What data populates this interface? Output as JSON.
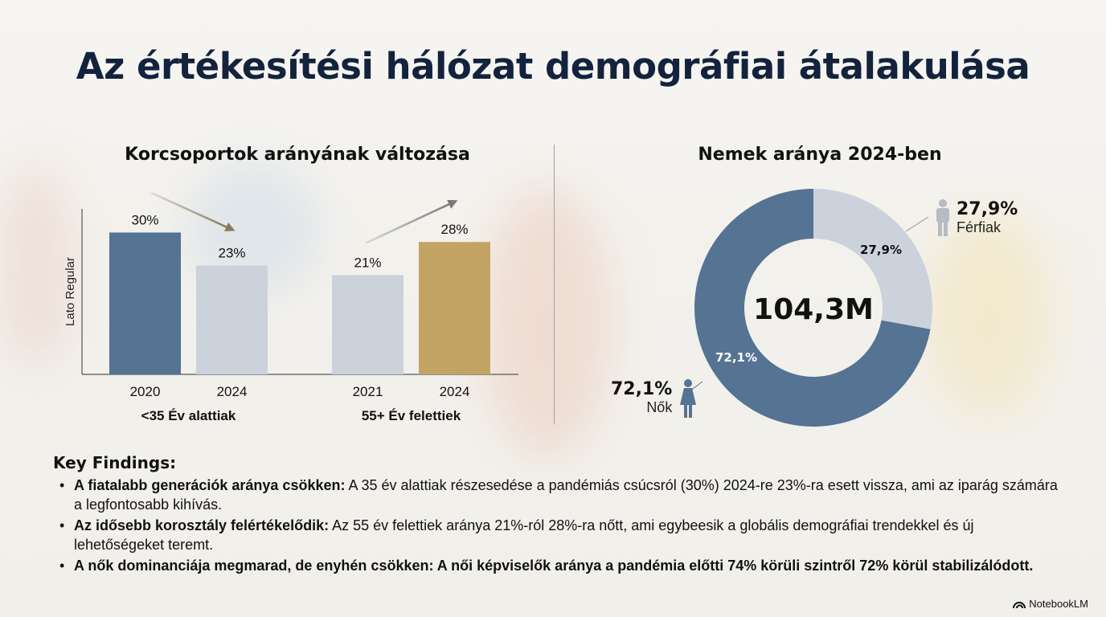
{
  "title": "Az értékesítési hálózat demográfiai átalakulása",
  "colors": {
    "title": "#13233d",
    "steel_blue": "#557392",
    "light_gray": "#cbd2db",
    "gold": "#c4a464",
    "arrow_gray": "#7f7f7f"
  },
  "chart_data": [
    {
      "type": "bar",
      "title": "Korcsoportok arányának változása",
      "ylabel": "Lato Regular",
      "xlabel": "",
      "ylim": [
        0,
        35
      ],
      "grid": false,
      "groups": [
        {
          "label": "<35 Év alattiak",
          "categories": [
            "2020",
            "2024"
          ],
          "values": [
            30,
            23
          ],
          "data_labels": [
            "30%",
            "23%"
          ],
          "trend": "down"
        },
        {
          "label": "55+ Év felettiek",
          "categories": [
            "2021",
            "2024"
          ],
          "values": [
            21,
            28
          ],
          "data_labels": [
            "21%",
            "28%"
          ],
          "trend": "up"
        }
      ]
    },
    {
      "type": "pie",
      "title": "Nemek aránya 2024-ben",
      "center_label": "104,3M",
      "slices": [
        {
          "label": "Férfiak",
          "value": 27.9,
          "display": "27,9%",
          "icon": "male-person-icon"
        },
        {
          "label": "Nők",
          "value": 72.1,
          "display": "72,1%",
          "icon": "female-person-icon"
        }
      ]
    }
  ],
  "findings": {
    "title": "Key Findings:",
    "items": [
      {
        "bold": "A fiatalabb generációk aránya csökken:",
        "text": " A 35 év alattiak részesedése a pandémiás csúcsról (30%) 2024-re 23%-ra esett vissza, ami az iparág számára a legfontosabb kihívás."
      },
      {
        "bold": "Az idősebb korosztály felértékelődik:",
        "text": " Az 55 év felettiek aránya 21%-ról 28%-ra nőtt, ami egybeesik a globális demográfiai trendekkel és új lehetőségeket teremt."
      },
      {
        "bold": "A nők dominanciája megmarad, de enyhén csökken: A női képviselők aránya a pandémia előtti 74% körüli szintről 72% körül stabilizálódott.",
        "text": ""
      }
    ]
  },
  "brand": {
    "name": "NotebookLM",
    "icon": "notebooklm-logo-icon"
  }
}
